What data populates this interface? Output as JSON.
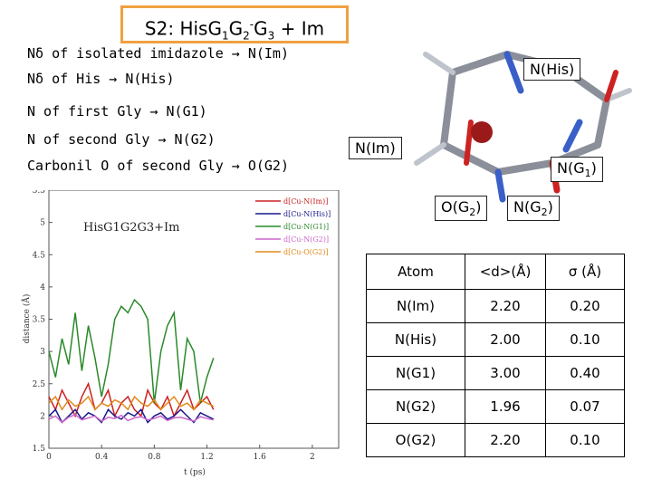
{
  "title": "S2: His G1 G2- G3 + Im",
  "title_parts": {
    "a": "S2: His",
    "g1": "G",
    "s1": "1",
    "g2": "G",
    "s2": "2",
    "sup": "-",
    "g3": "G",
    "s3": "3",
    "tail": " + Im"
  },
  "definitions": [
    "Nδ of isolated imidazole → N(Im)",
    "Nδ of His → N(His)",
    "N of first Gly → N(G1)",
    "N of second Gly → N(G2)",
    "Carbonil O of second Gly → O(G2)"
  ],
  "labels": {
    "n_his": "N(His)",
    "n_im": "N(Im)",
    "n_g1": "N(G1)",
    "o_g2": "O(G2)",
    "n_g2": "N(G2)"
  },
  "table": {
    "headers": [
      "Atom",
      "<d>(Å)",
      "σ (Å)"
    ],
    "rows": [
      [
        "N(Im)",
        "2.20",
        "0.20"
      ],
      [
        "N(His)",
        "2.00",
        "0.10"
      ],
      [
        "N(G1)",
        "3.00",
        "0.40"
      ],
      [
        "N(G2)",
        "1.96",
        "0.07"
      ],
      [
        "O(G2)",
        "2.20",
        "0.10"
      ]
    ]
  },
  "chart_data": {
    "type": "line",
    "title": "HisG1G2G3+Im",
    "xlabel": "t (ps)",
    "ylabel": "distance (Å)",
    "xlim": [
      0,
      2.2
    ],
    "ylim": [
      1.5,
      5.5
    ],
    "xticks": [
      "0",
      "0.4",
      "0.8",
      "1.2",
      "1.6",
      "2"
    ],
    "yticks": [
      "1.5",
      "2",
      "2.5",
      "3",
      "3.5",
      "4",
      "4.5",
      "5",
      "5.5"
    ],
    "legend_position": "top-right",
    "series": [
      {
        "name": "d[Cu-N(Im)]",
        "color": "#cc2222",
        "x": [
          0,
          0.05,
          0.1,
          0.15,
          0.2,
          0.25,
          0.3,
          0.35,
          0.4,
          0.45,
          0.5,
          0.55,
          0.6,
          0.65,
          0.7,
          0.75,
          0.8,
          0.85,
          0.9,
          0.95,
          1.0,
          1.05,
          1.1,
          1.15,
          1.2,
          1.25
        ],
        "y": [
          2.3,
          2.1,
          2.4,
          2.2,
          2.0,
          2.3,
          2.5,
          2.1,
          2.2,
          2.4,
          2.0,
          2.2,
          2.3,
          2.1,
          2.0,
          2.4,
          2.2,
          2.1,
          2.3,
          2.0,
          2.2,
          2.4,
          2.1,
          2.2,
          2.3,
          2.1
        ]
      },
      {
        "name": "d[Cu-N(His)]",
        "color": "#1a1a8c",
        "x": [
          0,
          0.05,
          0.1,
          0.15,
          0.2,
          0.25,
          0.3,
          0.35,
          0.4,
          0.45,
          0.5,
          0.55,
          0.6,
          0.65,
          0.7,
          0.75,
          0.8,
          0.85,
          0.9,
          0.95,
          1.0,
          1.05,
          1.1,
          1.15,
          1.2,
          1.25
        ],
        "y": [
          2.0,
          2.1,
          1.9,
          2.0,
          2.1,
          1.95,
          2.05,
          2.0,
          1.9,
          2.1,
          2.0,
          1.95,
          2.05,
          2.0,
          2.1,
          1.9,
          2.0,
          2.05,
          1.95,
          2.0,
          2.1,
          2.0,
          1.9,
          2.05,
          2.0,
          1.95
        ]
      },
      {
        "name": "d[Cu-N(G1)]",
        "color": "#2a8a2a",
        "x": [
          0,
          0.05,
          0.1,
          0.15,
          0.2,
          0.25,
          0.3,
          0.35,
          0.4,
          0.45,
          0.5,
          0.55,
          0.6,
          0.65,
          0.7,
          0.75,
          0.8,
          0.85,
          0.9,
          0.95,
          1.0,
          1.05,
          1.1,
          1.15,
          1.2,
          1.25
        ],
        "y": [
          3.0,
          2.6,
          3.2,
          2.8,
          3.6,
          2.7,
          3.4,
          2.9,
          2.3,
          2.8,
          3.5,
          3.7,
          3.6,
          3.8,
          3.7,
          3.5,
          2.2,
          3.0,
          3.4,
          3.6,
          2.4,
          3.2,
          3.0,
          2.2,
          2.6,
          2.9
        ]
      },
      {
        "name": "d[Cu-N(G2)]",
        "color": "#cc66cc",
        "x": [
          0,
          0.05,
          0.1,
          0.15,
          0.2,
          0.25,
          0.3,
          0.35,
          0.4,
          0.45,
          0.5,
          0.55,
          0.6,
          0.65,
          0.7,
          0.75,
          0.8,
          0.85,
          0.9,
          0.95,
          1.0,
          1.05,
          1.1,
          1.15,
          1.2,
          1.25
        ],
        "y": [
          1.95,
          2.0,
          1.9,
          1.98,
          2.02,
          1.94,
          1.97,
          2.0,
          1.92,
          1.98,
          1.96,
          2.01,
          1.93,
          1.97,
          1.99,
          1.94,
          1.96,
          2.0,
          1.93,
          1.97,
          1.98,
          1.95,
          1.92,
          1.99,
          1.96,
          1.94
        ]
      },
      {
        "name": "d[Cu-O(G2)]",
        "color": "#e08a1a",
        "x": [
          0,
          0.05,
          0.1,
          0.15,
          0.2,
          0.25,
          0.3,
          0.35,
          0.4,
          0.45,
          0.5,
          0.55,
          0.6,
          0.65,
          0.7,
          0.75,
          0.8,
          0.85,
          0.9,
          0.95,
          1.0,
          1.05,
          1.1,
          1.15,
          1.2,
          1.25
        ],
        "y": [
          2.2,
          2.3,
          2.1,
          2.25,
          2.15,
          2.2,
          2.3,
          2.1,
          2.2,
          2.15,
          2.25,
          2.2,
          2.1,
          2.3,
          2.2,
          2.15,
          2.25,
          2.1,
          2.2,
          2.3,
          2.15,
          2.2,
          2.1,
          2.25,
          2.2,
          2.15
        ]
      }
    ]
  }
}
